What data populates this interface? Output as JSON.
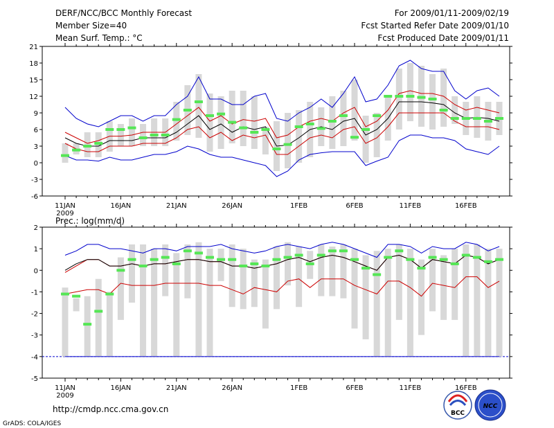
{
  "header": {
    "title": "DERF/NCC/BCC Monthly Forecast",
    "member_size": "Member Size=40",
    "variable": "Mean Surf. Temp.: °C",
    "period": "For 2009/01/11-2009/02/19",
    "started": "Fcst Started Refer Date 2009/01/10",
    "produced": "Fcst Produced Date 2009/01/11"
  },
  "footer": {
    "url": "http://cmdp.ncc.cma.gov.cn",
    "credit": "GrADS: COLA/IGES",
    "logo1": "BCC",
    "logo2": "NCC"
  },
  "colors": {
    "box": "#d8d8d8",
    "median": "#55e655",
    "mean": "#000000",
    "std": "#cc0000",
    "extreme": "#0000cc"
  },
  "chart_data": [
    {
      "type": "box-forecast",
      "ylabel": "Mean Surf. Temp.: °C",
      "ylim": [
        -6,
        21
      ],
      "yticks": [
        -6,
        -3,
        0,
        3,
        6,
        9,
        12,
        15,
        18,
        21
      ],
      "xticks": [
        {
          "label": "11JAN",
          "day": 0,
          "sub": "2009"
        },
        {
          "label": "16JAN",
          "day": 5
        },
        {
          "label": "21JAN",
          "day": 10
        },
        {
          "label": "26JAN",
          "day": 15
        },
        {
          "label": "1FEB",
          "day": 21
        },
        {
          "label": "6FEB",
          "day": 26
        },
        {
          "label": "11FEB",
          "day": 31
        },
        {
          "label": "16FEB",
          "day": 36
        }
      ],
      "days": 40,
      "box_low": [
        0,
        1.5,
        1,
        1,
        2,
        3,
        3,
        3,
        3,
        3,
        4,
        5,
        4.5,
        2,
        2.5,
        3.5,
        3,
        2.5,
        1.5,
        -1.5,
        -1,
        0,
        1,
        3,
        2.5,
        3,
        4,
        0,
        1,
        4,
        6,
        7.5,
        6.5,
        6,
        6.5,
        7,
        5,
        4.5,
        4,
        5
      ],
      "box_high": [
        3.5,
        3.5,
        5.5,
        5.5,
        7.5,
        7,
        8,
        7,
        8,
        8,
        11,
        14,
        16,
        12.5,
        12,
        13,
        13,
        12,
        6.5,
        7.5,
        9,
        9.5,
        11,
        10,
        12,
        13,
        15,
        8.5,
        9,
        12,
        17,
        18,
        17.5,
        16,
        17,
        12,
        11,
        12,
        11,
        11
      ],
      "median": [
        1.3,
        2.3,
        3,
        3.5,
        6,
        6,
        6.3,
        4.5,
        5,
        5,
        7.8,
        9.5,
        11,
        8.5,
        8.8,
        7.3,
        6.3,
        5.5,
        6,
        2.5,
        3.3,
        6.5,
        7,
        6.2,
        7.5,
        8.5,
        4.6,
        6,
        8.5,
        12,
        12,
        12,
        11.8,
        11.5,
        9.5,
        8,
        8,
        8,
        7.5,
        8
      ],
      "mean": [
        4.5,
        3.5,
        3,
        3,
        4,
        4,
        4,
        4.5,
        4.5,
        4.5,
        5.5,
        7,
        8.5,
        6,
        7,
        5.5,
        6.5,
        6,
        6.5,
        3,
        3.2,
        4.5,
        6,
        6.5,
        6,
        7.5,
        8,
        5,
        6,
        8,
        11,
        11,
        11,
        10.8,
        10.5,
        9,
        8,
        8.2,
        8,
        7.5
      ],
      "std_high": [
        5.5,
        4.5,
        3.5,
        4,
        4.8,
        4.8,
        5,
        5.5,
        5.5,
        5.5,
        7,
        8.5,
        10,
        7.5,
        8.5,
        7,
        7.8,
        7.5,
        8,
        4.5,
        5,
        6.5,
        7.5,
        8,
        7.5,
        9,
        10,
        6.5,
        7.5,
        9.5,
        12.5,
        13,
        12.5,
        12.5,
        12,
        10.5,
        9.5,
        10,
        9.5,
        9
      ],
      "std_low": [
        3.5,
        2.5,
        2,
        2,
        3,
        3,
        3,
        3.5,
        3.5,
        3.5,
        4.5,
        6,
        6.5,
        4.5,
        5.5,
        4,
        5,
        4.5,
        5,
        1.5,
        1.5,
        3,
        4.5,
        5,
        4.5,
        6,
        6.5,
        3.5,
        4.5,
        6.5,
        9,
        9,
        9,
        9,
        9,
        7.5,
        6.5,
        6.5,
        6.5,
        6
      ],
      "max": [
        10,
        8,
        7,
        6.5,
        7.5,
        8.5,
        8.5,
        7.5,
        8.5,
        8.5,
        10.5,
        12,
        15.5,
        11.5,
        11.5,
        10.5,
        10.5,
        12,
        12.5,
        8,
        7.5,
        9,
        10,
        11.5,
        10,
        12.5,
        15.5,
        11,
        11.5,
        14,
        17.5,
        18.5,
        17,
        16.5,
        16.5,
        13,
        11.5,
        13,
        13.5,
        12
      ],
      "min": [
        1.3,
        0.5,
        0.5,
        0.3,
        1,
        0.5,
        0.5,
        1,
        1.5,
        1.5,
        2,
        3,
        2.5,
        1.5,
        1,
        1,
        0.5,
        0,
        -0.5,
        -2.5,
        -1.5,
        0.5,
        1.5,
        1.8,
        2,
        2,
        2,
        -0.5,
        0.3,
        1,
        4,
        5,
        5,
        4.5,
        4.5,
        4,
        2.5,
        2,
        1.5,
        3
      ]
    },
    {
      "type": "box-forecast",
      "ylabel": "Prec.: log(mm/d)",
      "ylim": [
        -5,
        2
      ],
      "yticks": [
        -5,
        -4,
        -3,
        -2,
        -1,
        0,
        1,
        2
      ],
      "xticks": [
        {
          "label": "11JAN",
          "day": 0,
          "sub": "2009"
        },
        {
          "label": "16JAN",
          "day": 5
        },
        {
          "label": "21JAN",
          "day": 10
        },
        {
          "label": "26JAN",
          "day": 15
        },
        {
          "label": "1FEB",
          "day": 21
        },
        {
          "label": "6FEB",
          "day": 26
        },
        {
          "label": "11FEB",
          "day": 31
        },
        {
          "label": "16FEB",
          "day": 36
        }
      ],
      "days": 40,
      "baseline": -4,
      "box_low": [
        -4,
        -1.9,
        -4,
        -4,
        -4,
        -2.3,
        -1.5,
        -4,
        -4,
        -1.2,
        -4,
        -1.3,
        -4,
        -4,
        -0.5,
        -1.7,
        -1.8,
        -1.7,
        -2.7,
        -1.8,
        -0.7,
        -1.7,
        -0.4,
        -1.2,
        -1.2,
        -1.3,
        -2.7,
        -3.2,
        -4,
        -4,
        -2.3,
        -4,
        -3,
        -1.9,
        -2.3,
        -2.3,
        -4,
        -4,
        -4,
        -4
      ],
      "box_high": [
        -0.8,
        -1.3,
        -1.2,
        -0.4,
        -1,
        0.6,
        1.2,
        1.2,
        1,
        1.2,
        0.8,
        1.2,
        1.3,
        1,
        1,
        1.2,
        1,
        0.5,
        0.5,
        1.1,
        1.3,
        1.1,
        0.9,
        1.2,
        1.1,
        1.2,
        1,
        0.7,
        0.9,
        1,
        1.2,
        1,
        0.5,
        1,
        0.7,
        1,
        1.2,
        1.2,
        1,
        1
      ],
      "median": [
        -1.1,
        -1.2,
        -2.5,
        -1.9,
        -1.1,
        0,
        0.5,
        0.2,
        0.5,
        0.6,
        0.3,
        0.9,
        0.8,
        0.6,
        0.5,
        0.5,
        0.2,
        0.3,
        0.2,
        0.5,
        0.6,
        0.7,
        0.3,
        0.7,
        0.9,
        0.9,
        0.5,
        0.1,
        -0.2,
        0.6,
        0.9,
        0.5,
        0.1,
        0.6,
        0.5,
        0.3,
        0.7,
        0.6,
        0.4,
        0.5
      ],
      "mean": [
        0,
        0.3,
        0.5,
        0.5,
        0.2,
        0.2,
        0.3,
        0.2,
        0.3,
        0.3,
        0.4,
        0.5,
        0.5,
        0.4,
        0.4,
        0.2,
        0.2,
        0.1,
        0.2,
        0.3,
        0.5,
        0.6,
        0.4,
        0.6,
        0.7,
        0.6,
        0.4,
        0.2,
        0,
        0.6,
        0.7,
        0.5,
        0.1,
        0.5,
        0.4,
        0.3,
        0.7,
        0.6,
        0.3,
        0.5
      ],
      "std_high": [
        -0.1,
        0.2,
        0.5,
        0.5,
        0.2,
        0.2,
        0.3,
        0.2,
        0.3,
        0.3,
        0.4,
        0.5,
        0.5,
        0.4,
        0.4,
        0.2,
        0.2,
        0.1,
        0.2,
        0.3,
        0.5,
        0.6,
        0.4,
        0.6,
        0.7,
        0.6,
        0.4,
        0.2,
        0,
        0.6,
        0.7,
        0.5,
        0.1,
        0.5,
        0.4,
        0.3,
        0.7,
        0.6,
        0.3,
        0.5
      ],
      "std_low": [
        -1.1,
        -1,
        -0.9,
        -0.9,
        -1.1,
        -0.6,
        -0.7,
        -0.7,
        -0.7,
        -0.6,
        -0.6,
        -0.6,
        -0.6,
        -0.7,
        -0.7,
        -0.9,
        -1.1,
        -0.8,
        -0.9,
        -1,
        -0.5,
        -0.4,
        -0.8,
        -0.4,
        -0.4,
        -0.4,
        -0.7,
        -0.9,
        -1.1,
        -0.5,
        -0.5,
        -0.8,
        -1.2,
        -0.6,
        -0.7,
        -0.8,
        -0.3,
        -0.3,
        -0.8,
        -0.5
      ],
      "max": [
        0.7,
        0.9,
        1.2,
        1.2,
        1,
        1,
        0.9,
        0.8,
        1,
        1,
        0.9,
        1.1,
        1.1,
        1.1,
        1.2,
        1,
        0.9,
        0.8,
        0.9,
        1.1,
        1.2,
        1.1,
        1,
        1.2,
        1.3,
        1.2,
        1,
        0.8,
        0.6,
        1.2,
        1.2,
        1.1,
        0.8,
        1.1,
        1,
        1,
        1.3,
        1.2,
        0.9,
        1.1
      ],
      "min": [
        -4,
        -4,
        -4,
        -4,
        -4,
        -4,
        -4,
        -4,
        -4,
        -4,
        -4,
        -4,
        -4,
        -4,
        -4,
        -4,
        -4,
        -4,
        -4,
        -4,
        -4,
        -4,
        -4,
        -4,
        -4,
        -4,
        -4,
        -4,
        -4,
        -4,
        -4,
        -4,
        -4,
        -4,
        -4,
        -4,
        -4,
        -4,
        -4,
        -4
      ]
    }
  ]
}
